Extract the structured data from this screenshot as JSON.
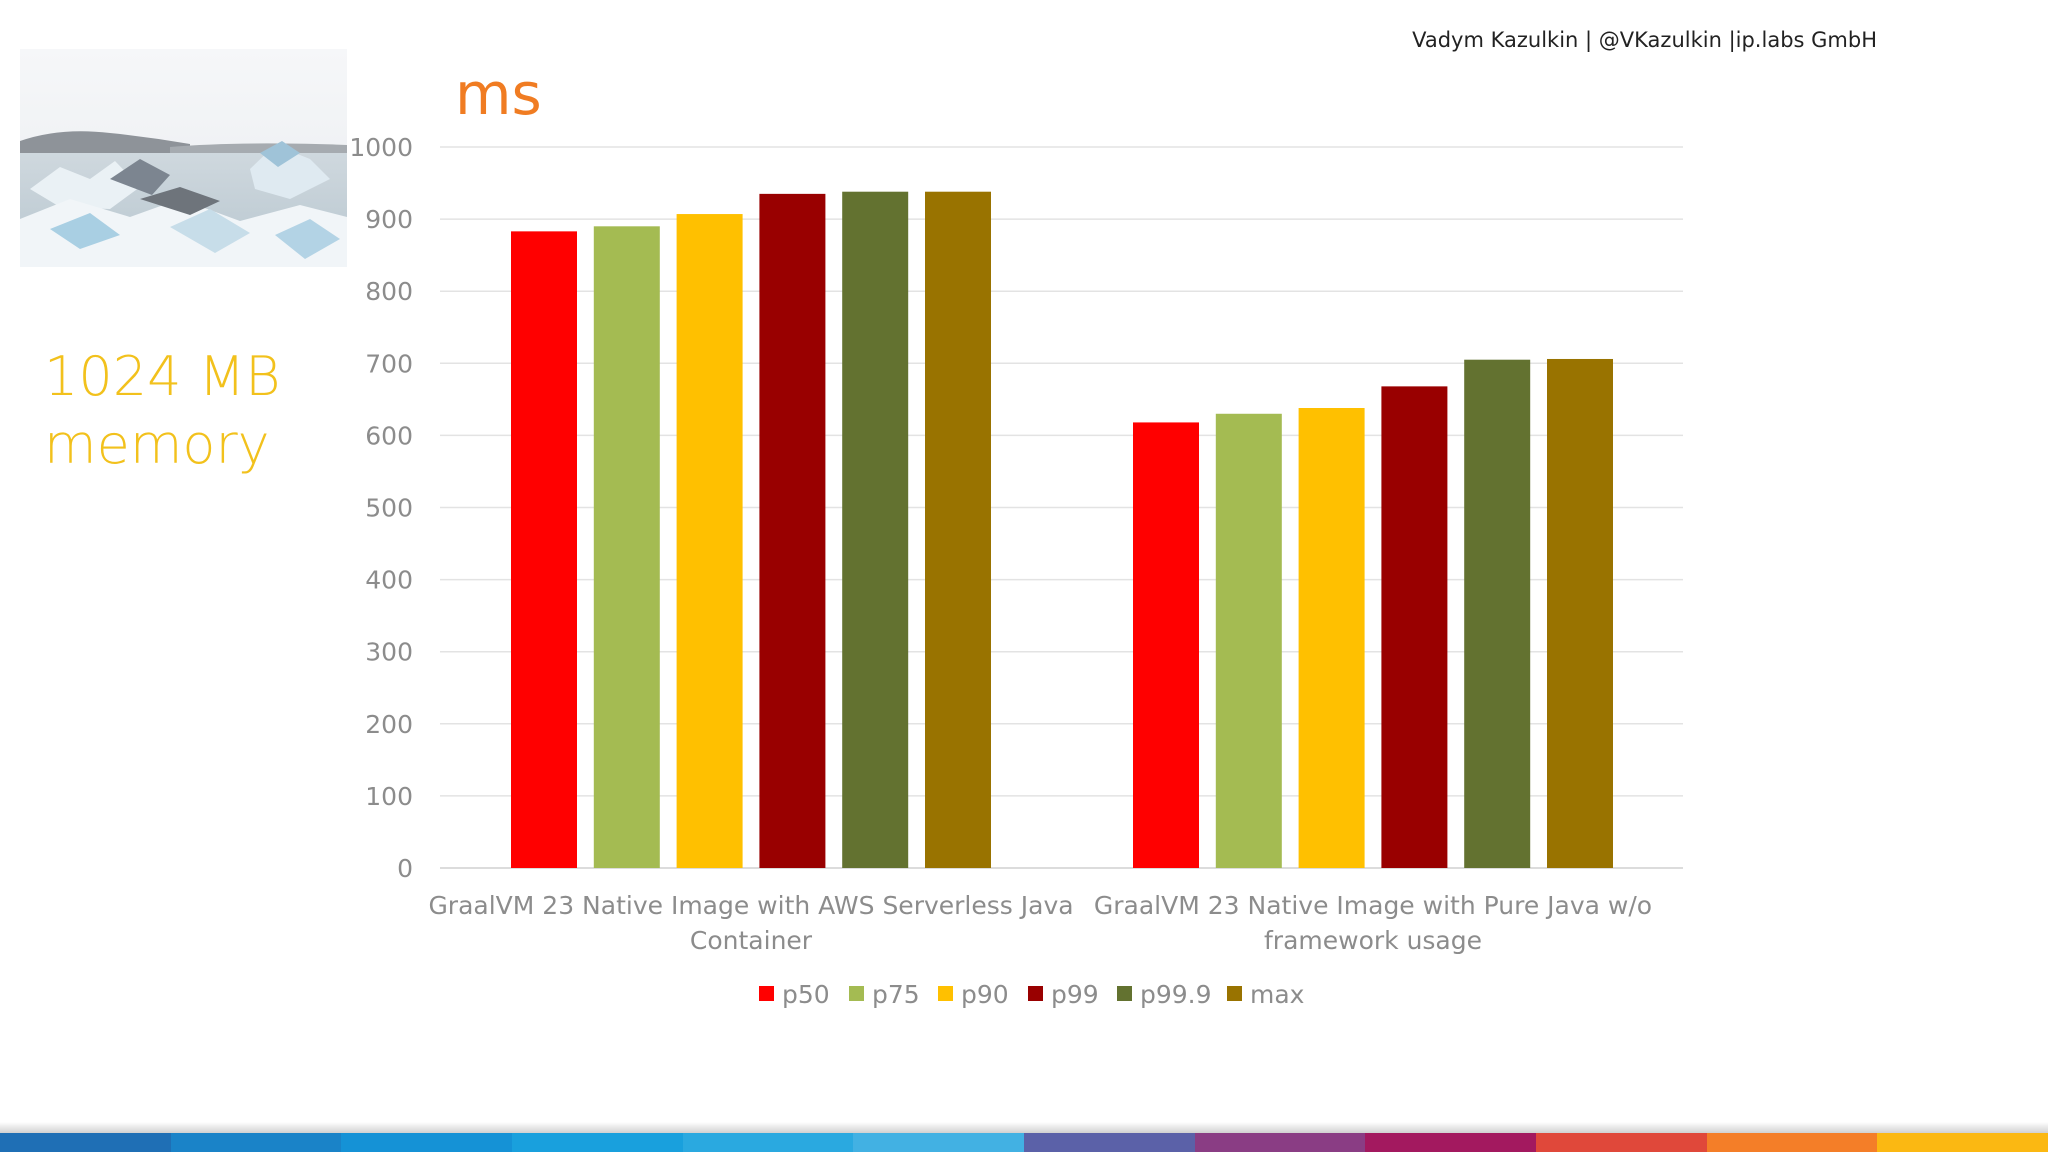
{
  "header": {
    "author": "Vadym Kazulkin | @VKazulkin |ip.labs GmbH"
  },
  "side_label": {
    "line1": "1024 MB",
    "line2": "memory"
  },
  "photo": {
    "subject": "icebergs-photo"
  },
  "chart_data": {
    "type": "bar",
    "title": "ms",
    "xlabel": "",
    "ylabel": "",
    "ylim": [
      0,
      1000
    ],
    "yticks": [
      0,
      100,
      200,
      300,
      400,
      500,
      600,
      700,
      800,
      900,
      1000
    ],
    "grid": true,
    "legend_position": "bottom",
    "categories": [
      [
        "GraalVM 23 Native Image with AWS Serverless Java",
        "Container"
      ],
      [
        "GraalVM 23 Native Image with Pure Java w/o",
        "framework usage"
      ]
    ],
    "series": [
      {
        "name": "p50",
        "color": "#ff0000",
        "values": [
          883,
          618
        ]
      },
      {
        "name": "p75",
        "color": "#a4bb52",
        "values": [
          890,
          630
        ]
      },
      {
        "name": "p90",
        "color": "#ffc000",
        "values": [
          907,
          638
        ]
      },
      {
        "name": "p99",
        "color": "#990000",
        "values": [
          935,
          668
        ]
      },
      {
        "name": "p99.9",
        "color": "#637230",
        "values": [
          938,
          705
        ]
      },
      {
        "name": "max",
        "color": "#997300",
        "values": [
          938,
          706
        ]
      }
    ]
  },
  "bottom_bar_colors": [
    "#1f6fb5",
    "#1a83c8",
    "#1592d6",
    "#19a0dd",
    "#2aa9e0",
    "#42b1e3",
    "#5b61a8",
    "#8a3d84",
    "#a3195f",
    "#e0483a",
    "#f47e28",
    "#fbb812"
  ]
}
